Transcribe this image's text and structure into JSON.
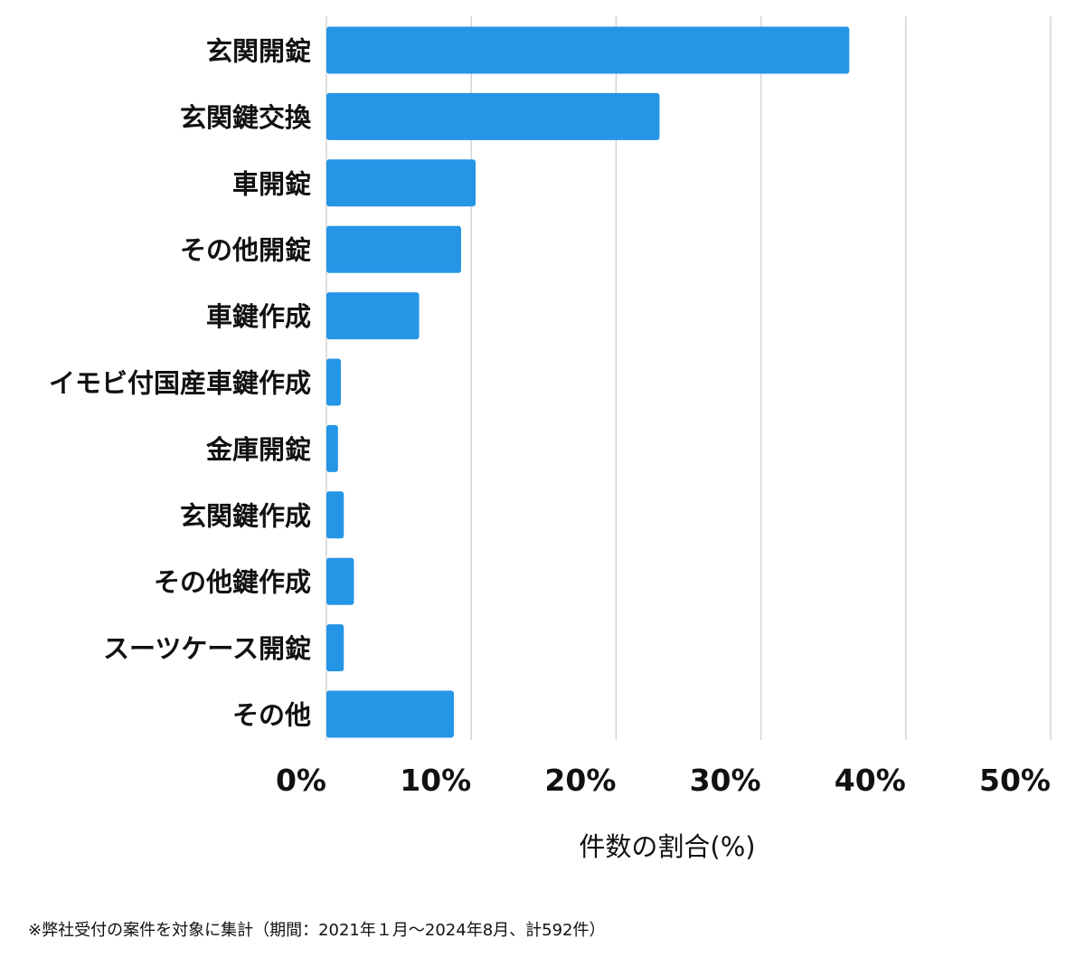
{
  "chart_data": {
    "type": "bar",
    "orientation": "horizontal",
    "categories": [
      "玄関開錠",
      "玄関鍵交換",
      "車開錠",
      "その他開錠",
      "車鍵作成",
      "イモビ付国産車鍵作成",
      "金庫開錠",
      "玄関鍵作成",
      "その他鍵作成",
      "スーツケース開錠",
      "その他"
    ],
    "values": [
      36.1,
      23.0,
      10.3,
      9.3,
      6.4,
      1.0,
      0.8,
      1.2,
      1.9,
      1.2,
      8.8
    ],
    "xlabel": "件数の割合(%)",
    "xlim": [
      0,
      50
    ],
    "xticks": [
      0,
      10,
      20,
      30,
      40,
      50
    ],
    "xtick_labels": [
      "0%",
      "10%",
      "20%",
      "30%",
      "40%",
      "50%"
    ],
    "grid": "vertical",
    "legend": "none",
    "bar_color": "#2595e6",
    "grid_color": "#d4d4d4"
  },
  "footnote": "※弊社受付の案件を対象に集計（期間：2021年１月〜2024年8月、計592件）"
}
